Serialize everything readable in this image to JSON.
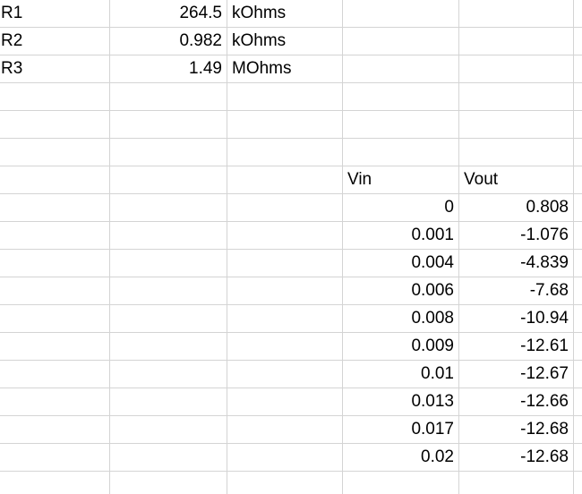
{
  "sheet": {
    "params": [
      {
        "name": "R1",
        "value": "264.5",
        "unit": "kOhms"
      },
      {
        "name": "R2",
        "value": "0.982",
        "unit": "kOhms"
      },
      {
        "name": "R3",
        "value": "1.49",
        "unit": "MOhms"
      }
    ],
    "table": {
      "headers": {
        "vin": "Vin",
        "vout": "Vout"
      },
      "rows": [
        {
          "vin": "0",
          "vout": "0.808"
        },
        {
          "vin": "0.001",
          "vout": "-1.076"
        },
        {
          "vin": "0.004",
          "vout": "-4.839"
        },
        {
          "vin": "0.006",
          "vout": "-7.68"
        },
        {
          "vin": "0.008",
          "vout": "-10.94"
        },
        {
          "vin": "0.009",
          "vout": "-12.61"
        },
        {
          "vin": "0.01",
          "vout": "-12.67"
        },
        {
          "vin": "0.013",
          "vout": "-12.66"
        },
        {
          "vin": "0.017",
          "vout": "-12.68"
        },
        {
          "vin": "0.02",
          "vout": "-12.68"
        }
      ]
    }
  }
}
